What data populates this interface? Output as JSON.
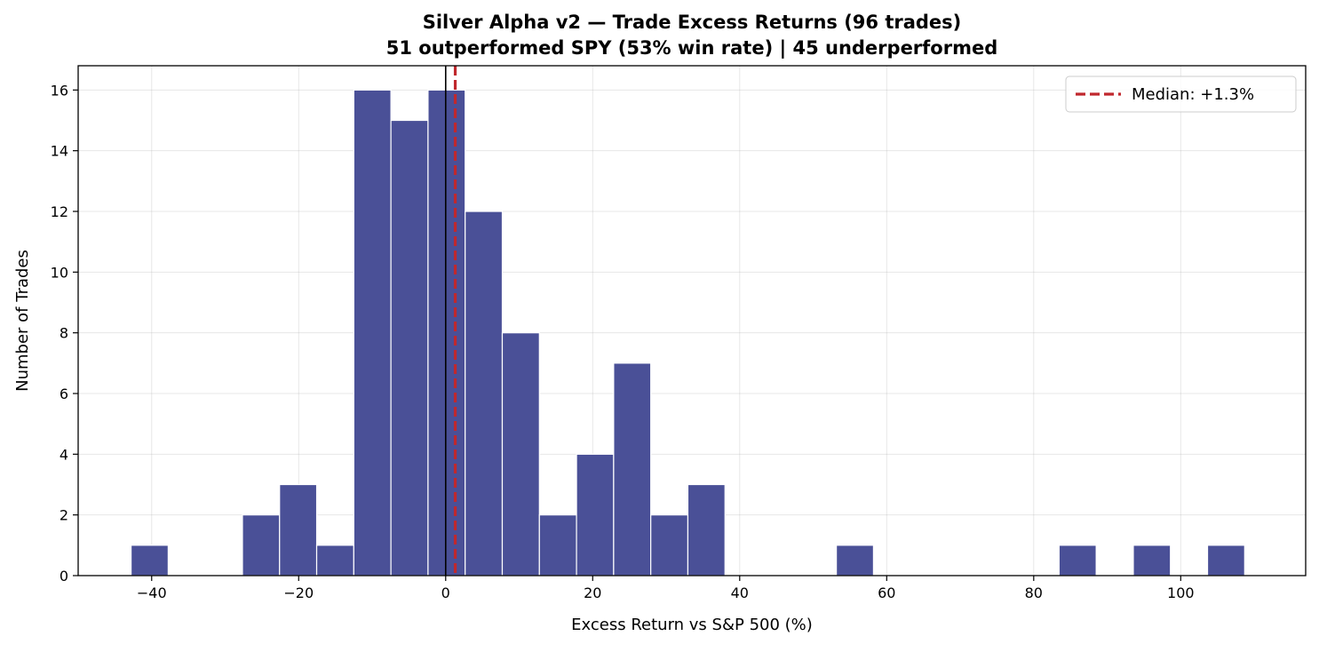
{
  "chart_data": {
    "type": "bar",
    "title": "Silver Alpha v2 — Trade Excess Returns (96 trades)",
    "subtitle": "51 outperformed SPY (53% win rate) | 45 underperformed",
    "xlabel": "Excess Return vs S&P 500 (%)",
    "ylabel": "Number of Trades",
    "xlim": [
      -50,
      117
    ],
    "ylim": [
      0,
      16.8
    ],
    "xticks": [
      -40,
      -20,
      0,
      20,
      40,
      60,
      80,
      100
    ],
    "xtick_labels": [
      "−40",
      "−20",
      "0",
      "20",
      "40",
      "60",
      "80",
      "100"
    ],
    "yticks": [
      0,
      2,
      4,
      6,
      8,
      10,
      12,
      14,
      16
    ],
    "grid": true,
    "bin_width": 5.05,
    "bins": [
      {
        "x0": -42.8,
        "count": 1
      },
      {
        "x0": -27.65,
        "count": 2
      },
      {
        "x0": -22.6,
        "count": 3
      },
      {
        "x0": -17.55,
        "count": 1
      },
      {
        "x0": -12.5,
        "count": 16
      },
      {
        "x0": -7.45,
        "count": 15
      },
      {
        "x0": -2.4,
        "count": 16
      },
      {
        "x0": 2.65,
        "count": 12
      },
      {
        "x0": 7.7,
        "count": 8
      },
      {
        "x0": 12.75,
        "count": 2
      },
      {
        "x0": 17.8,
        "count": 4
      },
      {
        "x0": 22.85,
        "count": 7
      },
      {
        "x0": 27.9,
        "count": 2
      },
      {
        "x0": 32.95,
        "count": 3
      },
      {
        "x0": 53.15,
        "count": 1
      },
      {
        "x0": 83.45,
        "count": 1
      },
      {
        "x0": 93.55,
        "count": 1
      },
      {
        "x0": 103.65,
        "count": 1
      }
    ],
    "reference_line_x": 0,
    "median": {
      "value": 1.3,
      "label": "Median: +1.3%",
      "color": "#c0282d"
    },
    "bar_color": "#4a5097",
    "legend_placement": "top-right"
  }
}
